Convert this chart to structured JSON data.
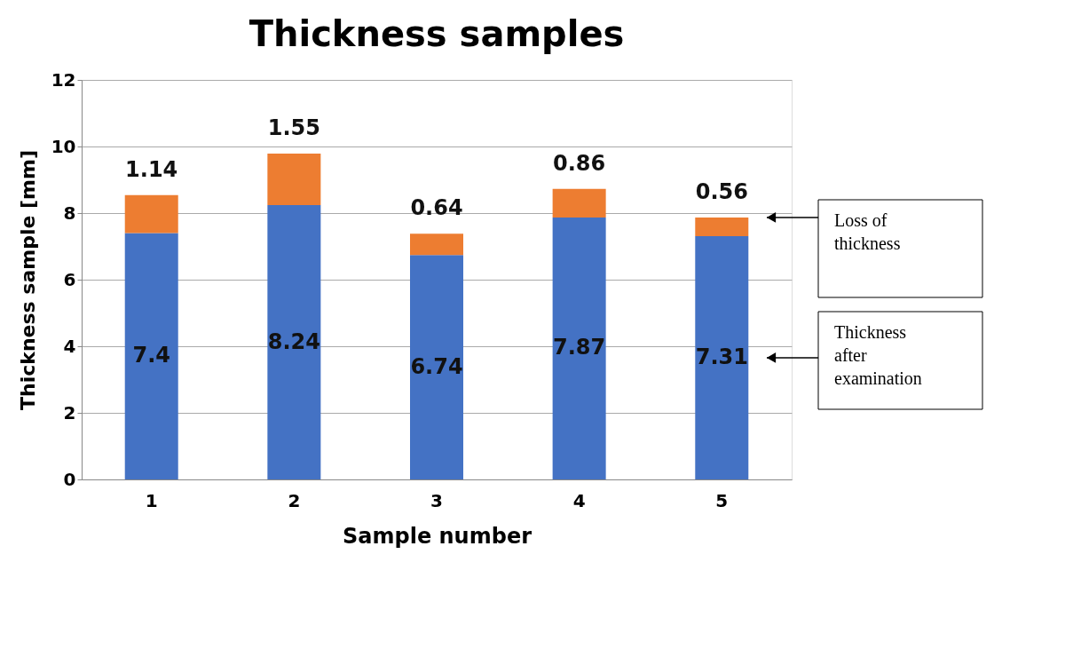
{
  "chart_data": {
    "type": "bar",
    "title": "Thickness samples",
    "xlabel": "Sample number",
    "ylabel": "Thickness sample [mm]",
    "categories": [
      "1",
      "2",
      "3",
      "4",
      "5"
    ],
    "stacked": true,
    "series": [
      {
        "name": "Thickness after examination",
        "color": "#4472c4",
        "values": [
          7.4,
          8.24,
          6.74,
          7.87,
          7.31
        ]
      },
      {
        "name": "Loss of thickness",
        "color": "#ed7d31",
        "values": [
          1.14,
          1.55,
          0.64,
          0.86,
          0.56
        ]
      }
    ],
    "ylim": [
      0,
      12
    ],
    "yticks": [
      0,
      2,
      4,
      6,
      8,
      10,
      12
    ],
    "grid": "y",
    "data_labels": true,
    "legend": "right"
  }
}
